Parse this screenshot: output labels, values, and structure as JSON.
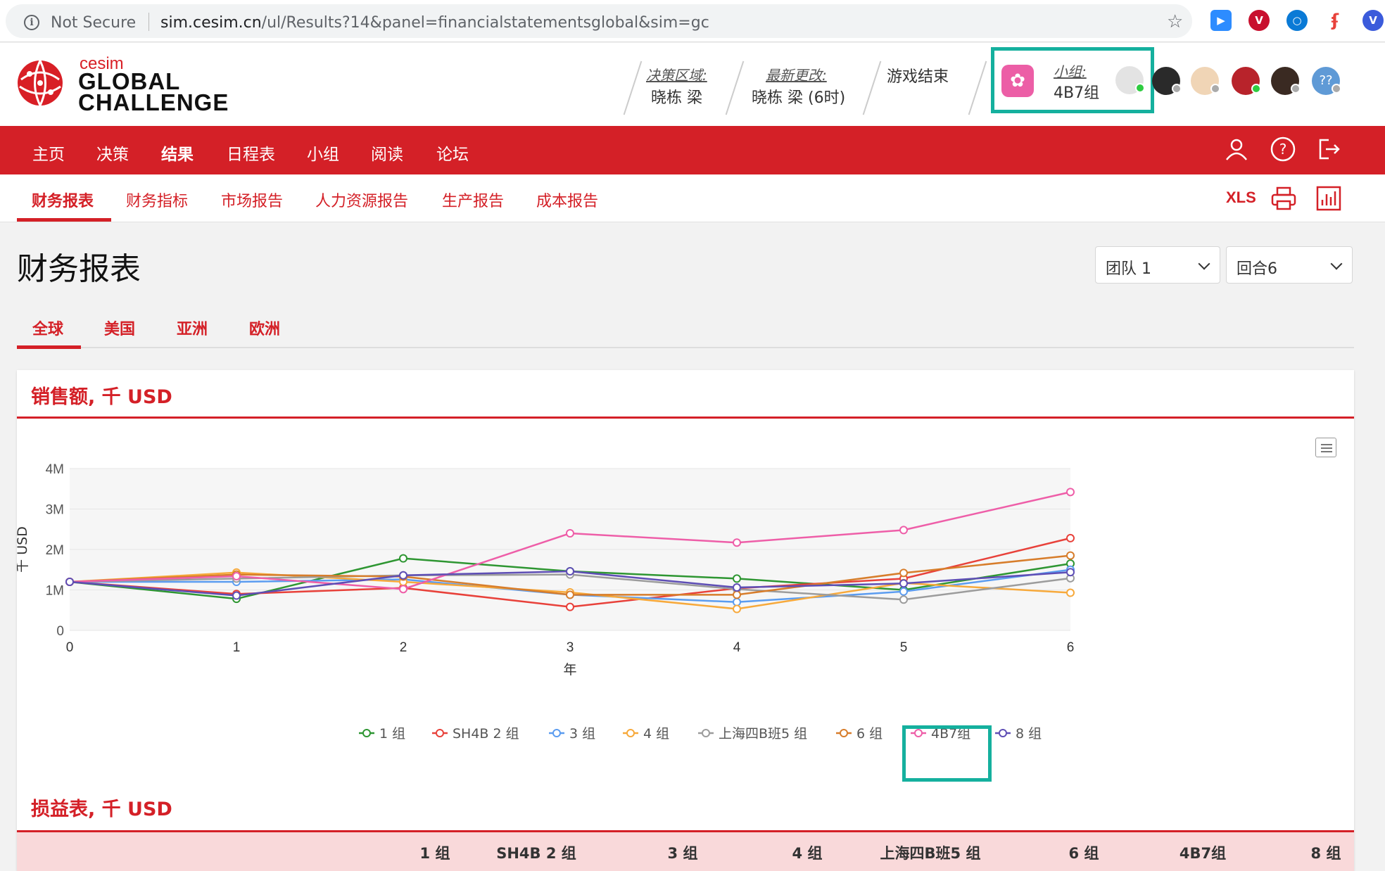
{
  "browser": {
    "security": "Not Secure",
    "url_host": "sim.cesim.cn",
    "url_path": "/ul/Results?14&panel=financialstatementsglobal&sim=gc"
  },
  "logo": {
    "brand": "cesim",
    "line1": "GLOBAL",
    "line2": "CHALLENGE"
  },
  "header": {
    "decision_area_label": "决策区域:",
    "decision_area_value": "晓栋 梁",
    "last_change_label": "最新更改:",
    "last_change_value": "晓栋 梁 (6时)",
    "game_status": "游戏结束",
    "team_label": "小组:",
    "team_value": "4B7组",
    "extra_member": "??"
  },
  "main_nav": [
    "主页",
    "决策",
    "结果",
    "日程表",
    "小组",
    "阅读",
    "论坛"
  ],
  "main_nav_active": "结果",
  "sub_nav": [
    "财务报表",
    "财务指标",
    "市场报告",
    "人力资源报告",
    "生产报告",
    "成本报告"
  ],
  "sub_nav_active": "财务报表",
  "export_label": "XLS",
  "page_title": "财务报表",
  "team_select": "团队 1",
  "round_select": "回合6",
  "region_tabs": [
    "全球",
    "美国",
    "亚洲",
    "欧洲"
  ],
  "region_active": "全球",
  "sales_title": "销售额, 千 USD",
  "income_title": "损益表, 千 USD",
  "table_headers": [
    "1 组",
    "SH4B 2 组",
    "3 组",
    "4 组",
    "上海四B班5 组",
    "6 组",
    "4B7组",
    "8 组"
  ],
  "chart_data": {
    "type": "line",
    "title": "销售额, 千 USD",
    "xlabel": "年",
    "ylabel": "千 USD",
    "x": [
      0,
      1,
      2,
      3,
      4,
      5,
      6
    ],
    "ylim": [
      0,
      4000
    ],
    "yticks": [
      "0",
      "1M",
      "2M",
      "3M",
      "4M"
    ],
    "grid": true,
    "legend": "bottom",
    "series": [
      {
        "name": "1 组",
        "color": "#2e9632",
        "values": [
          1200,
          780,
          1780,
          1460,
          1280,
          1000,
          1650
        ]
      },
      {
        "name": "SH4B 2 组",
        "color": "#e8413a",
        "values": [
          1200,
          900,
          1050,
          580,
          1040,
          1280,
          2280
        ]
      },
      {
        "name": "3 组",
        "color": "#5b9cf0",
        "values": [
          1200,
          1200,
          1260,
          880,
          700,
          960,
          1500
        ]
      },
      {
        "name": "4 组",
        "color": "#f7a93b",
        "values": [
          1200,
          1430,
          1200,
          940,
          530,
          1170,
          930
        ]
      },
      {
        "name": "上海四B班5 组",
        "color": "#9c9c9c",
        "values": [
          1200,
          1280,
          1360,
          1380,
          1020,
          760,
          1290
        ]
      },
      {
        "name": "6 组",
        "color": "#d77d2b",
        "values": [
          1200,
          1380,
          1330,
          880,
          880,
          1420,
          1850
        ]
      },
      {
        "name": "4B7组",
        "color": "#ee5ea8",
        "values": [
          1200,
          1340,
          1020,
          2400,
          2170,
          2480,
          3420
        ]
      },
      {
        "name": "8 组",
        "color": "#5e4eb5",
        "values": [
          1200,
          860,
          1360,
          1460,
          1060,
          1160,
          1440
        ]
      }
    ]
  }
}
